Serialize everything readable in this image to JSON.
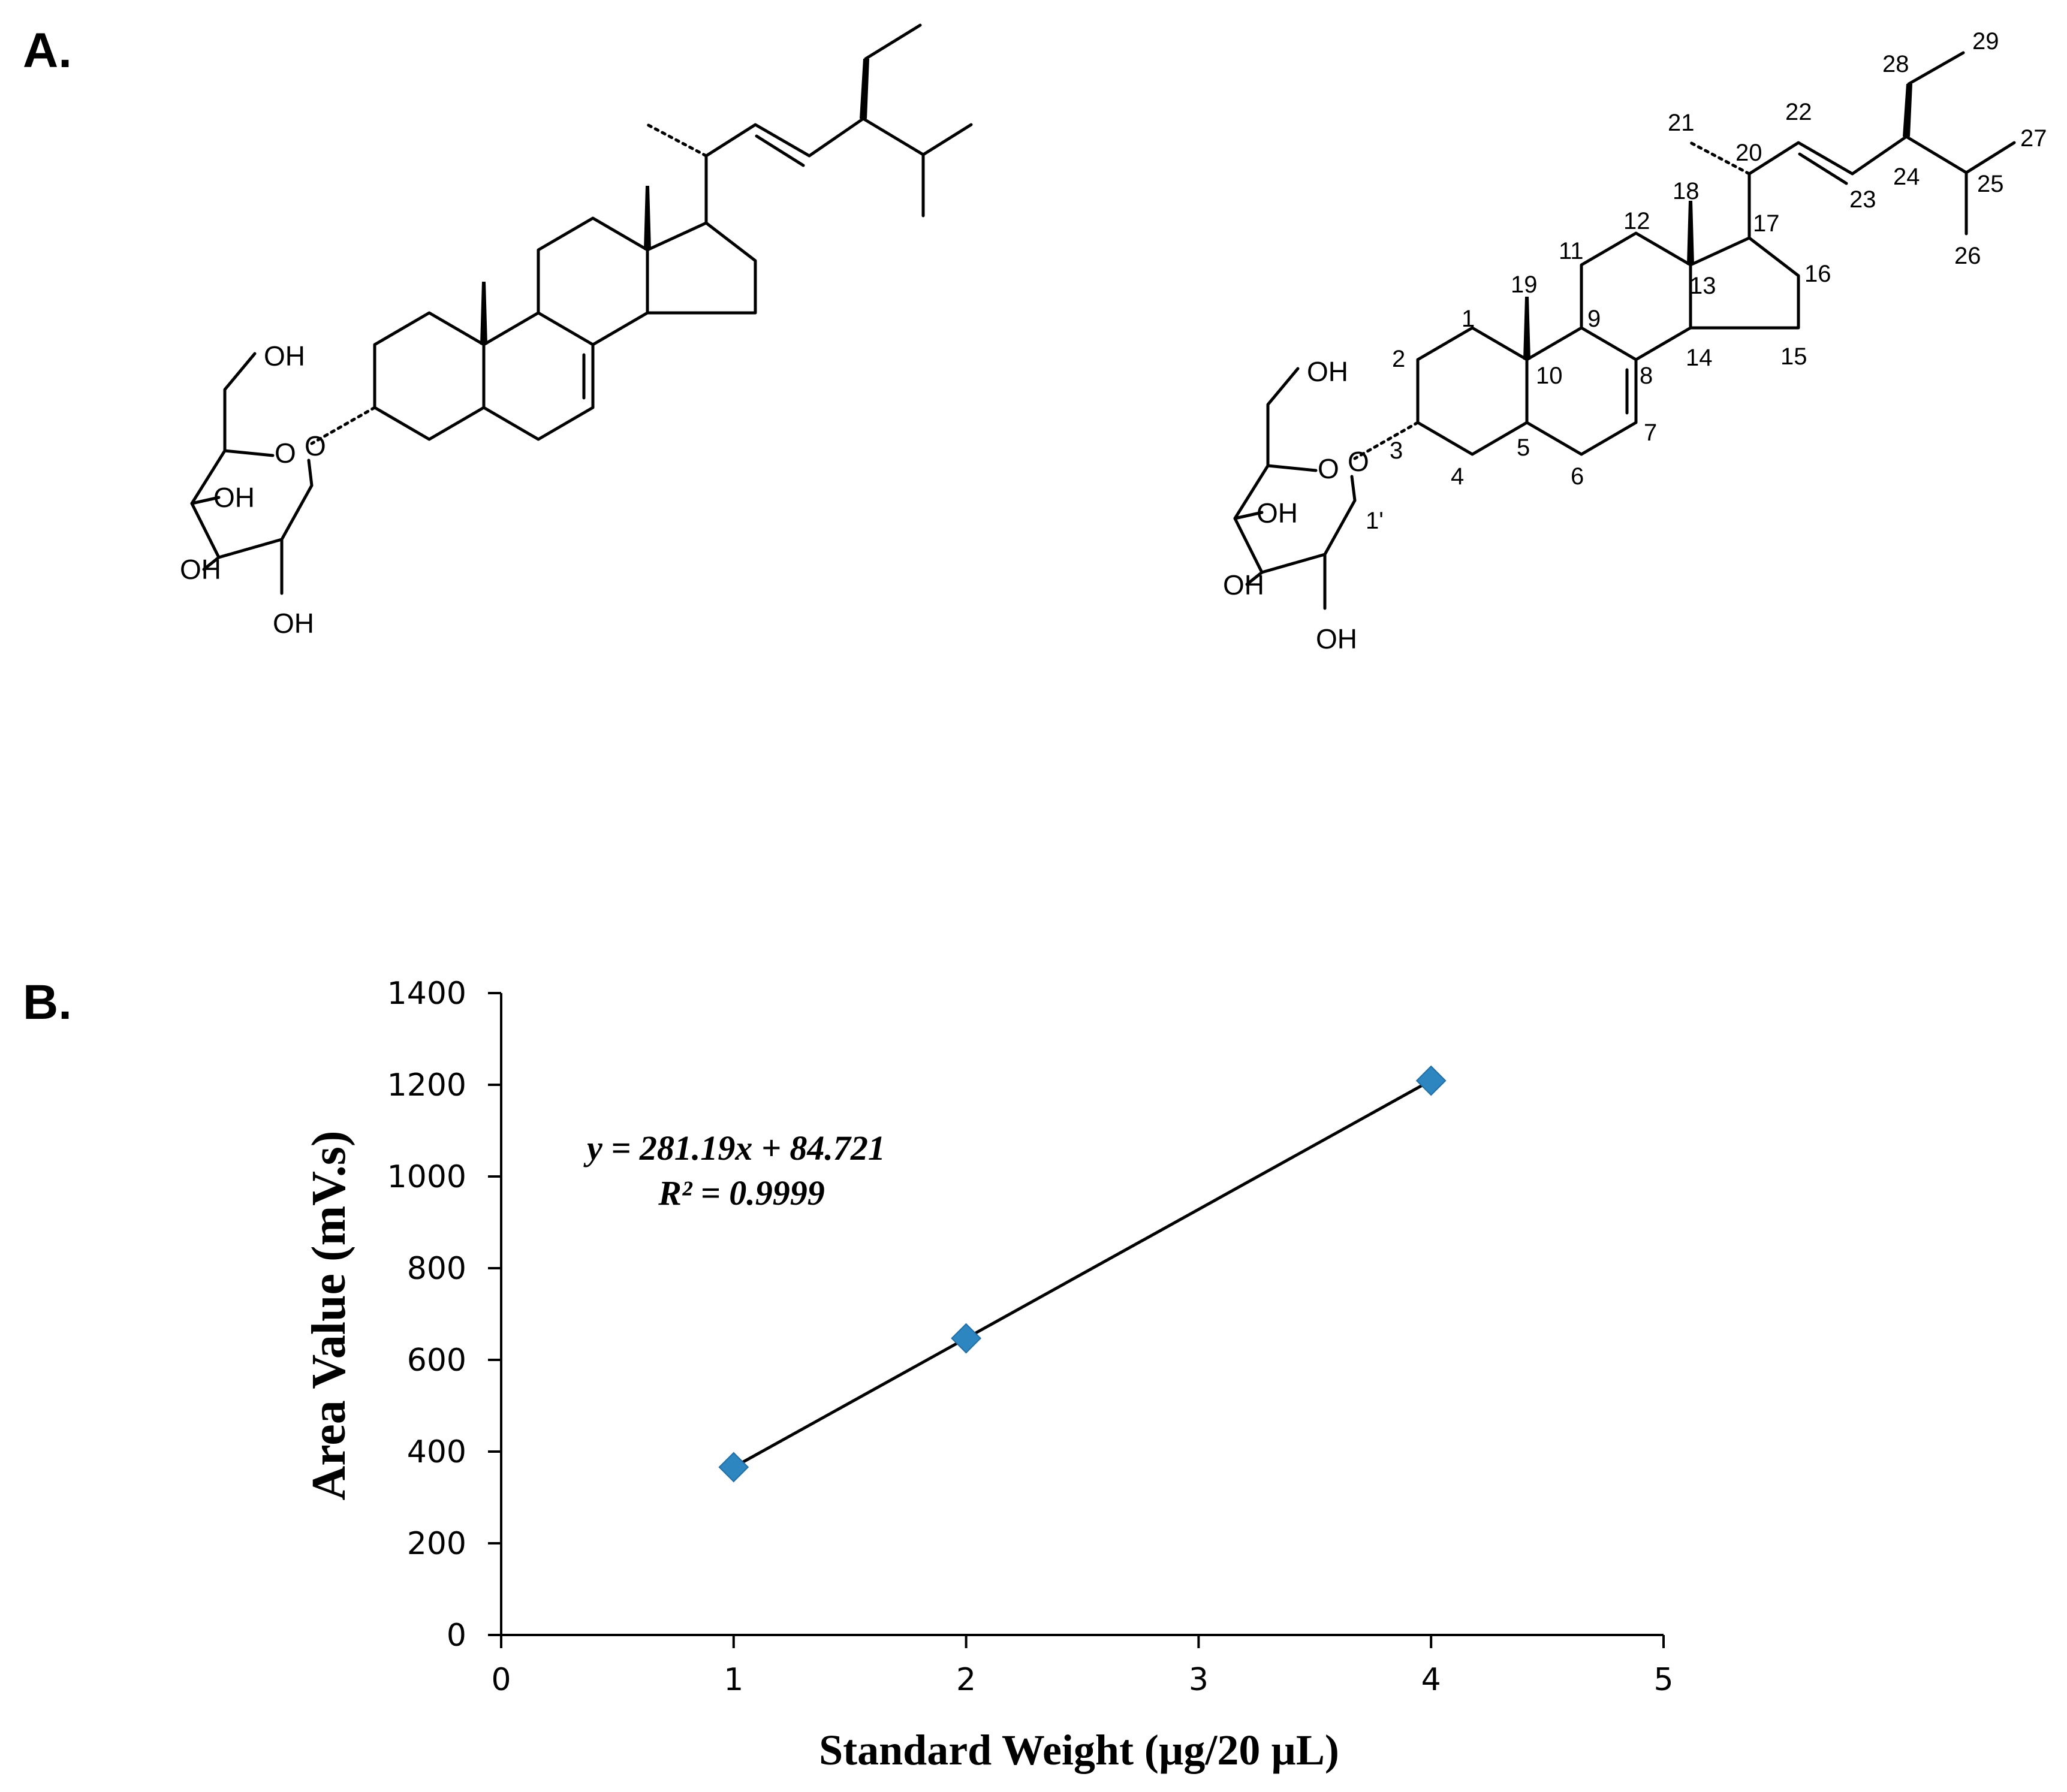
{
  "panel_a": {
    "label": "A.",
    "left_structure_atoms": [
      "OH",
      "O",
      "O",
      "OH",
      "OH",
      "OH"
    ],
    "right_structure_atoms": [
      "OH",
      "O",
      "O",
      "OH",
      "OH",
      "OH"
    ],
    "carbon_numbers": [
      "1",
      "2",
      "3",
      "4",
      "5",
      "6",
      "7",
      "8",
      "9",
      "10",
      "11",
      "12",
      "13",
      "14",
      "15",
      "16",
      "17",
      "18",
      "19",
      "20",
      "21",
      "22",
      "23",
      "24",
      "25",
      "26",
      "27",
      "28",
      "29",
      "1'"
    ]
  },
  "panel_b": {
    "label": "B."
  },
  "chart_data": {
    "type": "scatter",
    "title": "",
    "xlabel": "Standard Weight (µg/20 µL)",
    "ylabel": "Area  Value (mV.s)",
    "xlim": [
      0,
      5
    ],
    "ylim": [
      0,
      1400
    ],
    "x_ticks": [
      "0",
      "1",
      "2",
      "3",
      "4",
      "5"
    ],
    "y_ticks": [
      "0",
      "200",
      "400",
      "600",
      "800",
      "1000",
      "1200",
      "1400"
    ],
    "series": [
      {
        "x": [
          1,
          2,
          4
        ],
        "y": [
          366,
          647,
          1209
        ],
        "marker": "diamond",
        "color": "#2E86C1"
      }
    ],
    "trendline": {
      "slope": 281.19,
      "intercept": 84.721,
      "x_range": [
        1,
        4
      ],
      "color": "#000000"
    },
    "annotations": [
      "y = 281.19x + 84.721",
      "R² = 0.9999"
    ],
    "grid": false,
    "legend": "none"
  }
}
